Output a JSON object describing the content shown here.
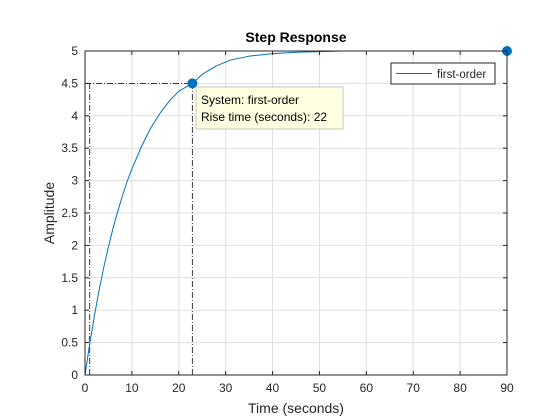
{
  "chart_data": {
    "type": "line",
    "title": "Step Response",
    "xlabel": "Time (seconds)",
    "ylabel": "Amplitude",
    "xlim": [
      0,
      90
    ],
    "ylim": [
      0,
      5
    ],
    "xticks": [
      "0",
      "10",
      "20",
      "30",
      "40",
      "50",
      "60",
      "70",
      "80",
      "90"
    ],
    "yticks": [
      "0",
      "0.5",
      "1",
      "1.5",
      "2",
      "2.5",
      "3",
      "3.5",
      "4",
      "4.5",
      "5"
    ],
    "grid": true,
    "legend_position": "top-right",
    "series": [
      {
        "name": "first-order",
        "color": "#0072bd",
        "x": [
          0,
          1,
          2,
          3,
          4,
          5,
          6,
          7,
          8,
          9,
          10,
          12,
          14,
          16,
          18,
          20,
          22.9,
          25,
          28,
          31,
          35,
          40,
          45,
          50,
          55,
          60,
          70,
          80,
          90
        ],
        "y": [
          0,
          0.48,
          0.91,
          1.31,
          1.66,
          1.98,
          2.27,
          2.53,
          2.77,
          2.99,
          3.18,
          3.52,
          3.81,
          4.04,
          4.23,
          4.38,
          4.5,
          4.64,
          4.77,
          4.86,
          4.92,
          4.96,
          4.98,
          4.99,
          5.0,
          5.0,
          5.0,
          5.0,
          5.0
        ]
      }
    ],
    "markers": [
      {
        "x": 22.9,
        "y": 4.5
      },
      {
        "x": 90,
        "y": 5
      }
    ],
    "rise_time_guides": {
      "t_start": 1.0,
      "t_end": 22.9,
      "level": 4.5
    },
    "datatip": {
      "line1": "System: first-order",
      "line2": "Rise time (seconds): 22"
    }
  }
}
